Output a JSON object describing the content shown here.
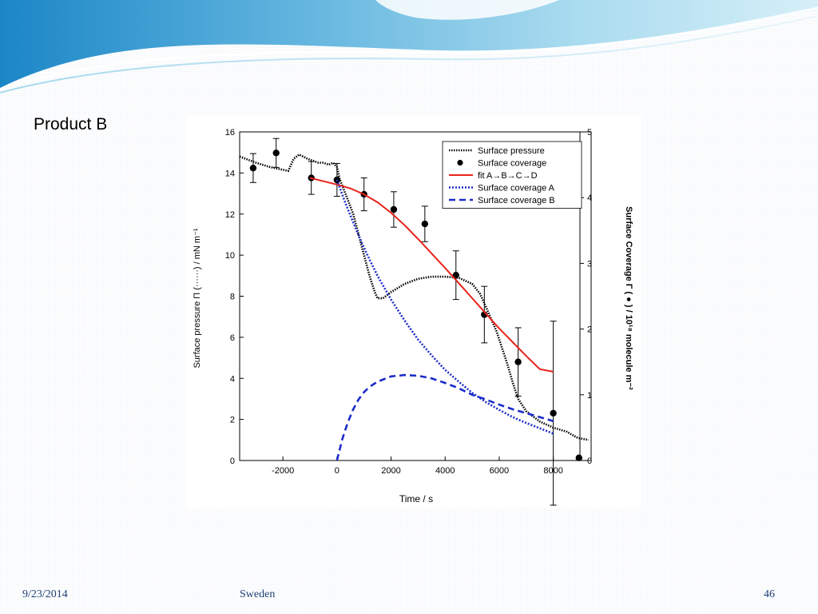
{
  "slide": {
    "title": "Product B",
    "footer": {
      "date": "9/23/2014",
      "place": "Sweden",
      "page": "46"
    }
  },
  "chart_data": {
    "type": "line",
    "xlabel": "Time / s",
    "ylabel": "Surface pressure Π (······) / mN m⁻¹",
    "y2label": "Surface Coverage Γ ( ● ) / 10¹⁸ molecule m⁻²",
    "xlim": [
      -3600,
      9400
    ],
    "ylim": [
      0,
      16
    ],
    "y2lim": [
      0,
      5
    ],
    "xticks": [
      -2000,
      0,
      2000,
      4000,
      6000,
      8000
    ],
    "yticks": [
      0,
      2,
      4,
      6,
      8,
      10,
      12,
      14,
      16
    ],
    "y2ticks": [
      0,
      1,
      2,
      3,
      4,
      5
    ],
    "grid": false,
    "legend_position": "top-right",
    "legend": [
      "Surface pressure",
      "Surface coverage",
      "fit A→B→C→D",
      "Surface coverage A",
      "Surface coverage B"
    ],
    "series": [
      {
        "name": "Surface pressure",
        "axis": "left",
        "style": "dotted",
        "color": "#000000",
        "x": [
          -3600,
          -3000,
          -2500,
          -1800,
          -1600,
          -1400,
          -1100,
          -900,
          -700,
          -500,
          -300,
          -150,
          0,
          100,
          250,
          400,
          600,
          800,
          1000,
          1200,
          1400,
          1500,
          1700,
          2000,
          2500,
          3000,
          3500,
          4000,
          4500,
          5000,
          5300,
          5600,
          5900,
          6100,
          6300,
          6500,
          6700,
          7000,
          7500,
          8000,
          8500,
          8900,
          9300
        ],
        "y": [
          14.8,
          14.5,
          14.3,
          14.1,
          14.7,
          14.9,
          14.7,
          14.6,
          14.5,
          14.5,
          14.4,
          14.5,
          14.3,
          13.7,
          13.2,
          12.7,
          12.0,
          11.0,
          10.0,
          9.0,
          8.2,
          7.9,
          7.9,
          8.2,
          8.6,
          8.85,
          8.95,
          8.95,
          8.9,
          8.6,
          8.1,
          7.2,
          6.3,
          5.5,
          4.7,
          3.8,
          3.0,
          2.4,
          1.9,
          1.6,
          1.4,
          1.1,
          1.0
        ]
      },
      {
        "name": "Surface coverage",
        "axis": "right",
        "style": "marker",
        "color": "#000000",
        "x": [
          -3100,
          -2250,
          -950,
          0,
          1000,
          2100,
          3250,
          4400,
          5450,
          6700,
          8000,
          8950
        ],
        "y": [
          4.45,
          4.68,
          4.3,
          4.27,
          4.05,
          3.82,
          3.6,
          2.82,
          2.22,
          1.5,
          0.72,
          0.04
        ],
        "err": [
          0.22,
          0.22,
          0.25,
          0.25,
          0.25,
          0.27,
          0.27,
          0.37,
          0.43,
          0.52,
          1.4,
          0
        ]
      },
      {
        "name": "fit A→B→C→D",
        "axis": "right",
        "style": "solid",
        "color": "#e8231a",
        "x": [
          -1000,
          -500,
          0,
          500,
          1000,
          1500,
          2000,
          2500,
          3000,
          3500,
          4000,
          4500,
          5000,
          5500,
          6000,
          6500,
          7000,
          7500,
          8000
        ],
        "y": [
          4.3,
          4.25,
          4.2,
          4.14,
          4.05,
          3.93,
          3.77,
          3.58,
          3.37,
          3.15,
          2.93,
          2.7,
          2.47,
          2.24,
          2.01,
          1.8,
          1.59,
          1.39,
          1.35
        ]
      },
      {
        "name": "Surface coverage A",
        "axis": "right",
        "style": "dotted",
        "color": "#1c2cc8",
        "x": [
          0,
          300,
          600,
          900,
          1200,
          1500,
          2000,
          2500,
          3000,
          3500,
          4000,
          4500,
          5000,
          5500,
          6000,
          6500,
          7000,
          7500,
          8000
        ],
        "y": [
          4.27,
          3.93,
          3.62,
          3.33,
          3.06,
          2.81,
          2.45,
          2.13,
          1.84,
          1.6,
          1.38,
          1.2,
          1.03,
          0.89,
          0.77,
          0.66,
          0.57,
          0.49,
          0.41
        ]
      },
      {
        "name": "Surface coverage B",
        "axis": "right",
        "style": "dashed",
        "color": "#1c2cc8",
        "x": [
          0,
          200,
          400,
          600,
          800,
          1000,
          1200,
          1500,
          2000,
          2500,
          3000,
          3500,
          4000,
          4500,
          5000,
          5500,
          6000,
          6500,
          7000,
          7500,
          8000
        ],
        "y": [
          0,
          0.33,
          0.58,
          0.78,
          0.93,
          1.04,
          1.12,
          1.2,
          1.28,
          1.3,
          1.29,
          1.25,
          1.18,
          1.1,
          1.0,
          0.93,
          0.85,
          0.78,
          0.72,
          0.66,
          0.6
        ]
      }
    ]
  }
}
